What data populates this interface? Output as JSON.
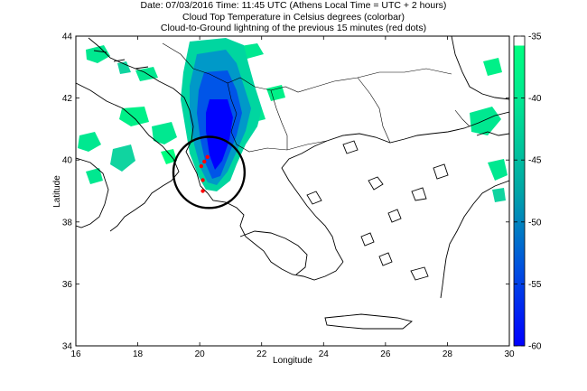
{
  "title": {
    "line1": "Date: 07/03/2016 Time: 11:45 UTC (Athens Local Time = UTC + 2 hours)",
    "line2": "Cloud Top Temperature in Celsius degrees (colorbar)",
    "line3": "Cloud-to-Ground lightning of the previous 15 minutes (red dots)"
  },
  "axes": {
    "xlabel": "Longitude",
    "ylabel": "Latitude",
    "x_ticks": [
      "16",
      "18",
      "20",
      "22",
      "24",
      "26",
      "28",
      "30"
    ],
    "y_ticks": [
      "34",
      "36",
      "38",
      "40",
      "42",
      "44"
    ],
    "xlim": [
      16,
      30
    ],
    "ylim": [
      34,
      44
    ]
  },
  "colorbar": {
    "ticks": [
      "-35",
      "-40",
      "-45",
      "-50",
      "-55",
      "-60"
    ],
    "range": [
      -60,
      -35
    ],
    "colors": {
      "cold": "#0000ff",
      "mid": "#00a6a6",
      "warm": "#00ff80",
      "top": "#ffffff"
    }
  },
  "highlight": {
    "type": "circle",
    "center_lon": 20.3,
    "center_lat": 39.6,
    "radius_deg": 1.15,
    "color": "#000000"
  },
  "lightning": {
    "color": "#ff0000",
    "strikes": [
      {
        "lon": 20.25,
        "lat": 40.1
      },
      {
        "lon": 20.15,
        "lat": 39.95
      },
      {
        "lon": 20.05,
        "lat": 39.8
      },
      {
        "lon": 20.1,
        "lat": 39.35
      },
      {
        "lon": 20.1,
        "lat": 39.0
      }
    ]
  }
}
